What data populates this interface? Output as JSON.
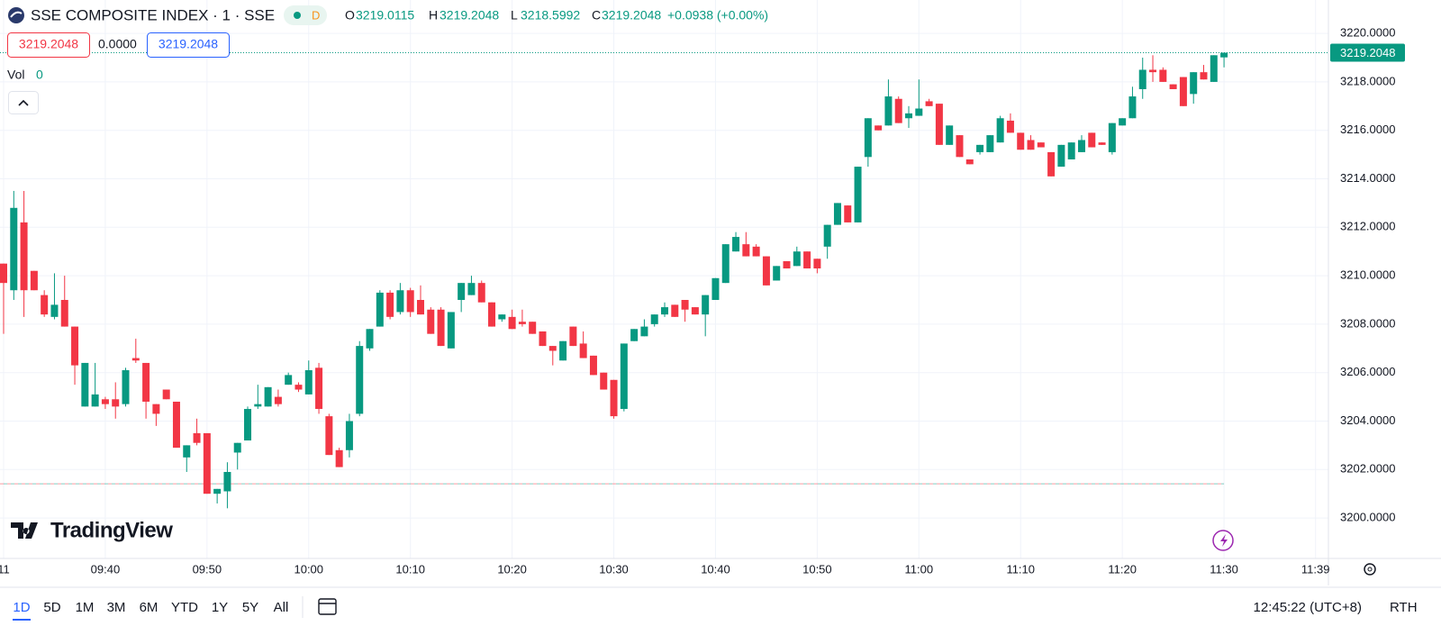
{
  "header": {
    "symbol": "SSE COMPOSITE INDEX · 1 · SSE",
    "market_status": "D",
    "o_label": "O",
    "h_label": "H",
    "l_label": "L",
    "c_label": "C",
    "change": "+0.0938 (+0.00%)",
    "sell_price": "3219.2048",
    "spread": "0.0000",
    "buy_price": "3219.2048",
    "volume_label": "Vol",
    "volume_value": "0"
  },
  "chart_data": {
    "type": "candlestick",
    "x": [
      "09:30",
      "09:31",
      "09:32",
      "09:33",
      "09:34",
      "09:35",
      "09:36",
      "09:37",
      "09:38",
      "09:39",
      "09:40",
      "09:41",
      "09:42",
      "09:43",
      "09:44",
      "09:45",
      "09:46",
      "09:47",
      "09:48",
      "09:49",
      "09:50",
      "09:51",
      "09:52",
      "09:53",
      "09:54",
      "09:55",
      "09:56",
      "09:57",
      "09:58",
      "09:59",
      "10:00",
      "10:01",
      "10:02",
      "10:03",
      "10:04",
      "10:05",
      "10:06",
      "10:07",
      "10:08",
      "10:09",
      "10:10",
      "10:11",
      "10:12",
      "10:13",
      "10:14",
      "10:15",
      "10:16",
      "10:17",
      "10:18",
      "10:19",
      "10:20",
      "10:21",
      "10:22",
      "10:23",
      "10:24",
      "10:25",
      "10:26",
      "10:27",
      "10:28",
      "10:29",
      "10:30",
      "10:31",
      "10:32",
      "10:33",
      "10:34",
      "10:35",
      "10:36",
      "10:37",
      "10:38",
      "10:39",
      "10:40",
      "10:41",
      "10:42",
      "10:43",
      "10:44",
      "10:45",
      "10:46",
      "10:47",
      "10:48",
      "10:49",
      "10:50",
      "10:51",
      "10:52",
      "10:53",
      "10:54",
      "10:55",
      "10:56",
      "10:57",
      "10:58",
      "10:59",
      "11:00",
      "11:01",
      "11:02",
      "11:03",
      "11:04",
      "11:05",
      "11:06",
      "11:07",
      "11:08",
      "11:09",
      "11:10",
      "11:11",
      "11:12",
      "11:13",
      "11:14",
      "11:15",
      "11:16",
      "11:17",
      "11:18",
      "11:19",
      "11:20",
      "11:21",
      "11:22",
      "11:23",
      "11:24",
      "11:25",
      "11:26",
      "11:27",
      "11:28",
      "11:29",
      "11:30"
    ],
    "open": [
      3210.5,
      3209.4,
      3212.2,
      3210.2,
      3209.2,
      3208.3,
      3209.0,
      3207.9,
      3204.6,
      3204.6,
      3204.9,
      3204.9,
      3204.7,
      3206.6,
      3206.4,
      3204.7,
      3205.3,
      3204.8,
      3202.5,
      3203.5,
      3203.5,
      3201.0,
      3201.1,
      3202.7,
      3203.2,
      3204.6,
      3204.6,
      3205.0,
      3205.5,
      3205.5,
      3205.1,
      3206.2,
      3204.2,
      3202.8,
      3202.8,
      3204.3,
      3207.0,
      3207.9,
      3209.3,
      3208.5,
      3209.4,
      3209.0,
      3208.6,
      3208.6,
      3207.0,
      3209.0,
      3209.2,
      3209.7,
      3208.9,
      3208.2,
      3208.3,
      3208.1,
      3208.1,
      3207.7,
      3207.1,
      3206.5,
      3207.9,
      3207.2,
      3206.7,
      3206.0,
      3205.7,
      3204.5,
      3207.3,
      3207.5,
      3208.0,
      3208.4,
      3208.8,
      3209.0,
      3208.7,
      3208.4,
      3209.0,
      3209.7,
      3211.0,
      3211.3,
      3211.2,
      3210.8,
      3209.8,
      3210.6,
      3210.4,
      3211.0,
      3210.7,
      3211.2,
      3212.1,
      3212.9,
      3212.2,
      3214.9,
      3216.2,
      3216.2,
      3217.3,
      3216.5,
      3216.6,
      3217.2,
      3217.1,
      3215.4,
      3215.8,
      3214.8,
      3215.1,
      3215.1,
      3215.5,
      3216.4,
      3215.9,
      3215.6,
      3215.5,
      3215.1,
      3214.5,
      3214.8,
      3215.1,
      3215.9,
      3215.5,
      3215.1,
      3216.2,
      3216.5,
      3217.7,
      3218.5,
      3218.5,
      3217.9,
      3218.2,
      3217.5,
      3218.4,
      3218.0,
      3219.0115
    ],
    "high": [
      3210.5,
      3213.5,
      3213.5,
      3210.2,
      3209.4,
      3210.1,
      3210.0,
      3207.9,
      3206.4,
      3206.4,
      3205.0,
      3205.6,
      3206.2,
      3207.4,
      3206.4,
      3204.7,
      3205.3,
      3204.8,
      3203.0,
      3204.1,
      3203.5,
      3201.2,
      3202.3,
      3203.1,
      3204.6,
      3205.5,
      3205.4,
      3205.3,
      3206.0,
      3205.6,
      3206.5,
      3206.4,
      3204.3,
      3202.9,
      3204.3,
      3207.3,
      3207.8,
      3209.4,
      3209.4,
      3209.7,
      3209.5,
      3209.6,
      3208.7,
      3208.7,
      3208.5,
      3209.7,
      3210.0,
      3209.8,
      3208.9,
      3208.4,
      3208.6,
      3208.6,
      3208.1,
      3207.7,
      3207.1,
      3207.3,
      3207.9,
      3207.7,
      3206.7,
      3206.0,
      3205.7,
      3207.2,
      3207.8,
      3208.2,
      3208.4,
      3208.9,
      3208.8,
      3209.0,
      3208.7,
      3209.2,
      3209.9,
      3211.3,
      3211.8,
      3211.8,
      3211.3,
      3210.8,
      3210.4,
      3210.6,
      3211.2,
      3211.0,
      3210.7,
      3212.1,
      3213.0,
      3212.9,
      3214.5,
      3216.5,
      3216.2,
      3218.1,
      3217.4,
      3217.0,
      3218.1,
      3217.3,
      3217.1,
      3216.2,
      3215.8,
      3214.8,
      3215.4,
      3215.8,
      3216.6,
      3216.7,
      3215.9,
      3215.8,
      3215.5,
      3215.1,
      3215.4,
      3215.5,
      3215.8,
      3215.9,
      3215.5,
      3216.3,
      3216.5,
      3217.8,
      3219.0,
      3219.1,
      3218.6,
      3217.9,
      3218.2,
      3218.4,
      3218.7,
      3219.1,
      3219.2048
    ],
    "low": [
      3207.6,
      3209.0,
      3208.3,
      3209.4,
      3208.3,
      3208.2,
      3207.9,
      3205.5,
      3204.6,
      3204.6,
      3204.5,
      3204.1,
      3204.6,
      3206.4,
      3204.1,
      3203.8,
      3204.9,
      3202.9,
      3201.9,
      3203.0,
      3201.0,
      3200.6,
      3200.4,
      3202.0,
      3203.2,
      3204.5,
      3204.6,
      3204.6,
      3205.5,
      3205.2,
      3205.1,
      3204.3,
      3202.6,
      3202.1,
      3202.5,
      3204.2,
      3206.9,
      3207.9,
      3208.2,
      3208.4,
      3208.3,
      3208.4,
      3207.6,
      3207.1,
      3207.0,
      3208.5,
      3209.2,
      3208.9,
      3207.9,
      3208.1,
      3207.8,
      3207.9,
      3207.6,
      3207.1,
      3206.3,
      3206.5,
      3207.1,
      3206.6,
      3205.9,
      3205.3,
      3204.1,
      3204.4,
      3207.3,
      3207.5,
      3207.9,
      3208.3,
      3208.3,
      3208.1,
      3208.4,
      3207.5,
      3209.0,
      3209.7,
      3211.0,
      3210.8,
      3210.8,
      3209.6,
      3209.8,
      3210.3,
      3210.4,
      3210.3,
      3210.1,
      3210.7,
      3212.1,
      3212.2,
      3212.2,
      3214.5,
      3216.0,
      3216.2,
      3216.3,
      3216.1,
      3216.6,
      3217.0,
      3215.4,
      3215.4,
      3214.9,
      3214.6,
      3215.0,
      3215.1,
      3215.5,
      3215.9,
      3215.2,
      3215.2,
      3215.3,
      3214.1,
      3214.5,
      3214.8,
      3215.1,
      3215.3,
      3215.4,
      3215.0,
      3216.2,
      3216.5,
      3217.3,
      3218.0,
      3218.0,
      3217.7,
      3217.0,
      3217.1,
      3218.1,
      3218.0,
      3218.5992
    ],
    "close": [
      3209.7,
      3212.8,
      3209.4,
      3209.4,
      3208.4,
      3208.8,
      3207.9,
      3206.3,
      3206.4,
      3205.1,
      3204.7,
      3204.6,
      3206.1,
      3206.5,
      3204.8,
      3204.3,
      3204.9,
      3202.9,
      3203.0,
      3203.1,
      3201.0,
      3201.2,
      3201.9,
      3203.1,
      3204.5,
      3204.7,
      3205.4,
      3204.7,
      3205.9,
      3205.3,
      3206.1,
      3204.5,
      3202.6,
      3202.1,
      3204.0,
      3207.1,
      3207.8,
      3209.3,
      3208.3,
      3209.4,
      3208.5,
      3208.4,
      3207.6,
      3207.1,
      3208.5,
      3209.7,
      3209.7,
      3208.9,
      3207.9,
      3208.4,
      3207.8,
      3208.0,
      3207.6,
      3207.1,
      3206.9,
      3207.3,
      3207.1,
      3206.6,
      3205.9,
      3205.3,
      3204.2,
      3207.2,
      3207.8,
      3207.9,
      3208.4,
      3208.7,
      3208.3,
      3208.6,
      3208.4,
      3209.2,
      3209.9,
      3211.3,
      3211.6,
      3210.8,
      3210.8,
      3209.6,
      3210.4,
      3210.3,
      3211.0,
      3210.3,
      3210.3,
      3212.1,
      3213.0,
      3212.2,
      3214.5,
      3216.5,
      3216.0,
      3217.4,
      3216.3,
      3216.7,
      3216.9,
      3217.0,
      3215.4,
      3216.2,
      3214.9,
      3214.6,
      3215.4,
      3215.8,
      3216.5,
      3215.9,
      3215.2,
      3215.2,
      3215.3,
      3214.1,
      3215.4,
      3215.5,
      3215.6,
      3215.3,
      3215.4,
      3216.3,
      3216.5,
      3217.4,
      3218.5,
      3218.4,
      3218.0,
      3217.7,
      3217.0,
      3218.4,
      3218.1,
      3219.1,
      3219.2048
    ],
    "up_color": "#089981",
    "down_color": "#f23645",
    "xlim": [
      "09:30",
      "11:40"
    ],
    "xticks": [
      {
        "value": "09:30",
        "label": "11"
      },
      "09:40",
      "09:50",
      "10:00",
      "10:10",
      "10:20",
      "10:30",
      "10:40",
      "10:50",
      "11:00",
      "11:10",
      "11:20",
      "11:30",
      "11:39"
    ],
    "ylim": [
      3198.33,
      3221.38
    ],
    "yticks": [
      {
        "value": 3200,
        "label": "3200.0000"
      },
      {
        "value": 3202,
        "label": "3202.0000"
      },
      {
        "value": 3204,
        "label": "3204.0000"
      },
      {
        "value": 3206,
        "label": "3206.0000"
      },
      {
        "value": 3208,
        "label": "3208.0000"
      },
      {
        "value": 3210,
        "label": "3210.0000"
      },
      {
        "value": 3212,
        "label": "3212.0000"
      },
      {
        "value": 3214,
        "label": "3214.0000"
      },
      {
        "value": 3216,
        "label": "3216.0000"
      },
      {
        "value": 3218,
        "label": "3218.0000"
      },
      {
        "value": 3220,
        "label": "3220.0000"
      }
    ],
    "grid": true,
    "reference_line": 3201.41
  },
  "logo": "TradingView",
  "footer": {
    "ranges": [
      "1D",
      "5D",
      "1M",
      "3M",
      "6M",
      "YTD",
      "1Y",
      "5Y",
      "All"
    ],
    "clock": "12:45:22 (UTC+8)",
    "session": "RTH"
  }
}
